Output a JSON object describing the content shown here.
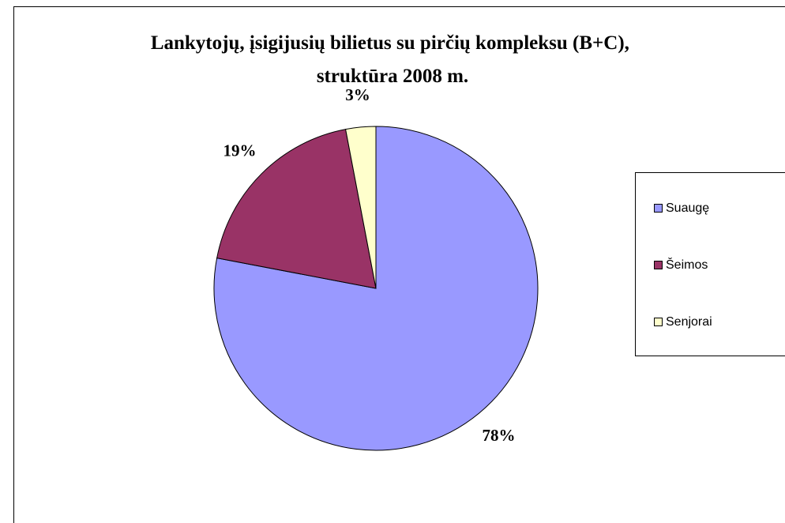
{
  "chart_data": {
    "type": "pie",
    "title": [
      "Lankytojų, įsigijusių bilietus su pirčių kompleksu (B+C),",
      "struktūra 2008 m."
    ],
    "categories": [
      "Suaugę",
      "Šeimos",
      "Senjorai"
    ],
    "values": [
      78,
      19,
      3
    ],
    "value_labels": [
      "78%",
      "19%",
      "3%"
    ],
    "colors": [
      "#9999ff",
      "#993366",
      "#ffffcc"
    ],
    "legend": "right"
  }
}
